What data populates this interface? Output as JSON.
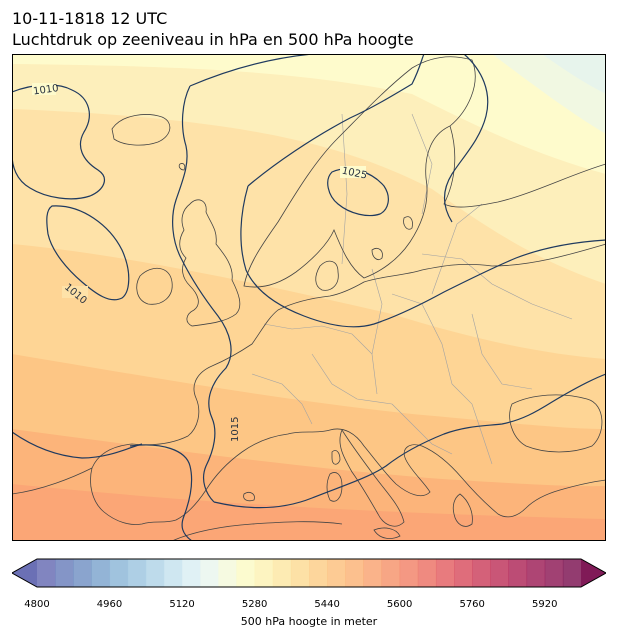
{
  "title_line1": "10-11-1818 12 UTC",
  "title_line2": "Luchtdruk op zeeniveau in hPa en 500 hPa hoogte",
  "isobar_labels": [
    {
      "name": "isobar-label-1010-nw",
      "text": "1010"
    },
    {
      "name": "isobar-label-1025",
      "text": "1025"
    },
    {
      "name": "isobar-label-1010-w",
      "text": "1010"
    },
    {
      "name": "isobar-label-1015",
      "text": "1015"
    }
  ],
  "colorbar": {
    "label": "500 hPa hoogte in meter",
    "min": 4800,
    "max": 6000,
    "step": 40,
    "ticks": [
      "4800",
      "4960",
      "5120",
      "5280",
      "5440",
      "5600",
      "5760",
      "5920"
    ],
    "extend": "both"
  },
  "colors": {
    "line": "#1f3a5f",
    "coast": "#444444",
    "border": "#999999"
  }
}
